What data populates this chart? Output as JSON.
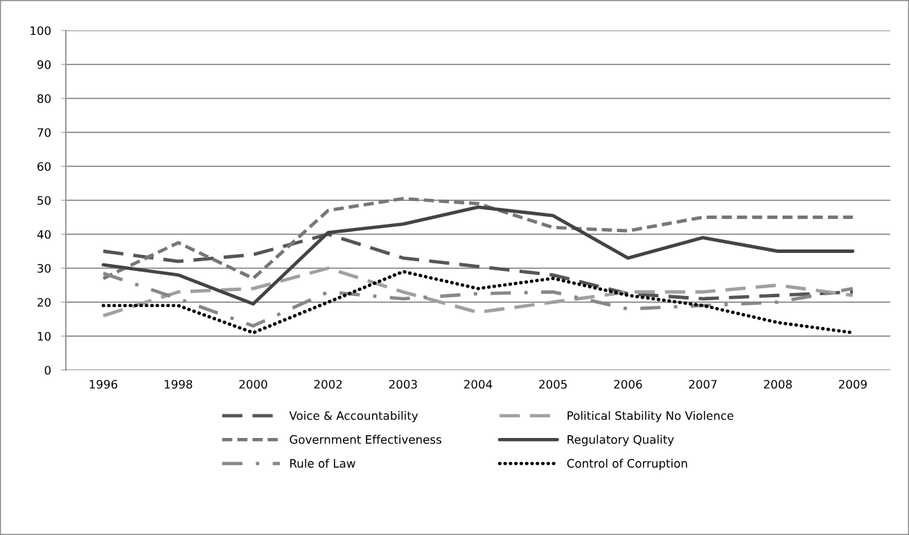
{
  "chart_data": {
    "type": "line",
    "categories": [
      "1996",
      "1998",
      "2000",
      "2002",
      "2003",
      "2004",
      "2005",
      "2006",
      "2007",
      "2008",
      "2009"
    ],
    "series": [
      {
        "name": "Voice & Accountability",
        "color": "#555555",
        "line_style": "longdash",
        "values": [
          35,
          32,
          34,
          40,
          33,
          30.5,
          28,
          22.5,
          21,
          22,
          23
        ]
      },
      {
        "name": "Political Stability No Violence",
        "color": "#a0a0a0",
        "line_style": "longdash",
        "values": [
          16,
          23,
          24,
          30,
          23,
          17,
          20,
          23,
          23,
          25,
          22
        ]
      },
      {
        "name": "Government Effectiveness",
        "color": "#777777",
        "line_style": "dashed",
        "values": [
          27,
          37.5,
          27,
          47,
          50.5,
          49,
          42,
          41,
          45,
          45,
          45
        ]
      },
      {
        "name": "Regulatory Quality",
        "color": "#444444",
        "line_style": "solid",
        "values": [
          31,
          28,
          19.5,
          40.5,
          43,
          48,
          45.5,
          33,
          39,
          35,
          35
        ]
      },
      {
        "name": "Rule of Law",
        "color": "#888888",
        "line_style": "dashdot",
        "values": [
          28.5,
          21,
          13,
          23,
          21,
          22.5,
          23,
          18,
          19,
          20,
          24
        ]
      },
      {
        "name": "Control of Corruption",
        "color": "#000000",
        "line_style": "dotted",
        "values": [
          19,
          19,
          11,
          20,
          29,
          24,
          27,
          22,
          19,
          14,
          11
        ]
      }
    ],
    "ylim": [
      0,
      100
    ],
    "yticks": [
      0,
      10,
      20,
      30,
      40,
      50,
      60,
      70,
      80,
      90,
      100
    ],
    "grid": "y",
    "legend": "bottom",
    "marker": "none"
  }
}
